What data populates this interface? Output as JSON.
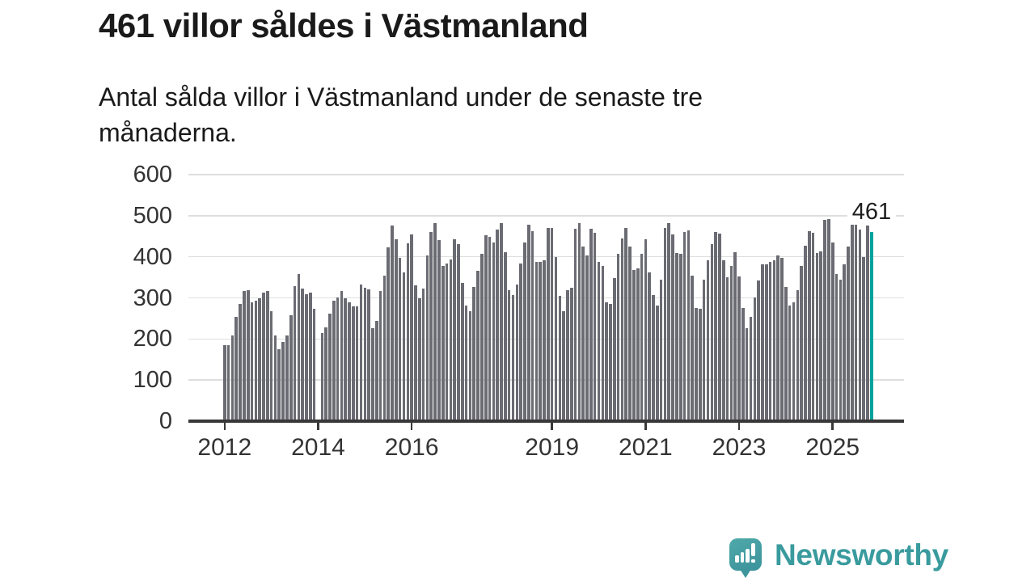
{
  "header": {
    "title": "461 villor såldes i Västmanland",
    "subtitle_line1": "Antal sålda villor i Västmanland under de senaste tre",
    "subtitle_line2": "månaderna."
  },
  "chart_data": {
    "type": "bar",
    "title": "461 villor såldes i Västmanland",
    "subtitle": "Antal sålda villor i Västmanland under de senaste tre månaderna.",
    "x_unit": "month",
    "start_month": "2012-01",
    "end_month": "2025-11",
    "x_tick_labels": [
      "2012",
      "2014",
      "2016",
      "2019",
      "2021",
      "2023",
      "2025"
    ],
    "x_tick_month_index": [
      0,
      24,
      48,
      84,
      108,
      132,
      156
    ],
    "y_ticks": [
      0,
      100,
      200,
      300,
      400,
      500,
      600
    ],
    "ylim": [
      0,
      600
    ],
    "grid": true,
    "bar_color": "#6b6b73",
    "highlight_color": "#00a39b",
    "highlight_last": true,
    "last_value_label": "461",
    "values": [
      185,
      185,
      208,
      254,
      286,
      316,
      319,
      290,
      293,
      299,
      312,
      316,
      267,
      208,
      175,
      192,
      208,
      257,
      329,
      358,
      322,
      308,
      313,
      273,
      null,
      214,
      229,
      262,
      293,
      301,
      317,
      299,
      290,
      279,
      280,
      332,
      324,
      320,
      226,
      244,
      317,
      355,
      422,
      477,
      443,
      397,
      361,
      432,
      454,
      330,
      299,
      322,
      404,
      461,
      482,
      440,
      378,
      384,
      394,
      443,
      430,
      337,
      281,
      267,
      327,
      365,
      407,
      453,
      448,
      435,
      467,
      482,
      412,
      319,
      307,
      333,
      384,
      435,
      479,
      463,
      388,
      388,
      391,
      470,
      470,
      399,
      304,
      268,
      319,
      324,
      469,
      481,
      425,
      404,
      468,
      459,
      388,
      378,
      290,
      285,
      348,
      407,
      444,
      470,
      425,
      368,
      371,
      407,
      442,
      361,
      306,
      281,
      345,
      470,
      481,
      454,
      409,
      407,
      461,
      464,
      355,
      276,
      273,
      345,
      392,
      431,
      461,
      456,
      391,
      350,
      378,
      412,
      352,
      276,
      227,
      254,
      301,
      342,
      381,
      382,
      388,
      391,
      404,
      397,
      327,
      281,
      290,
      319,
      378,
      427,
      463,
      458,
      410,
      414,
      489,
      491,
      435,
      359,
      345,
      381,
      424,
      480,
      486,
      466,
      399,
      476,
      461
    ]
  },
  "footer": {
    "brand": "Newsworthy"
  },
  "colors": {
    "text": "#1a1a1a",
    "axis": "#383838",
    "gridline": "#dedede",
    "brand_teal": "#3a9b9e"
  }
}
